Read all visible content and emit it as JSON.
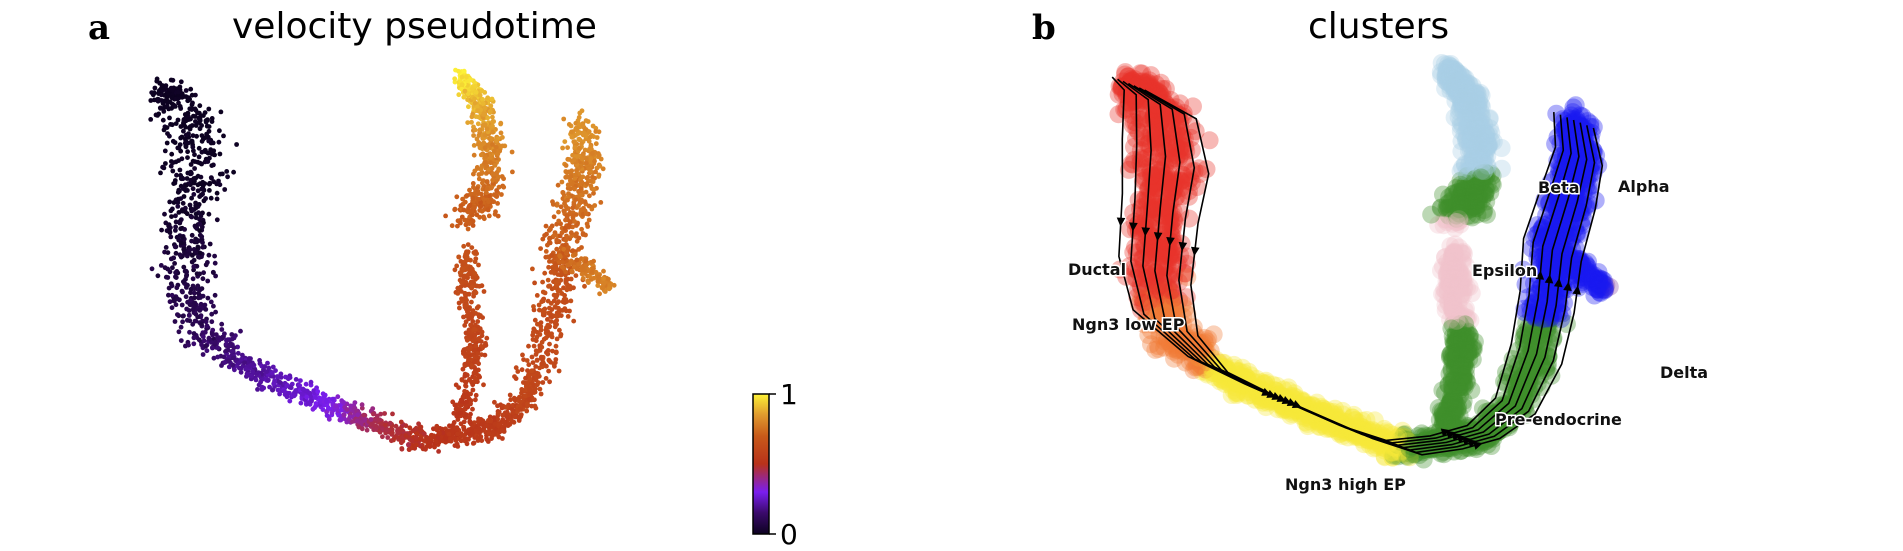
{
  "chart_data": [
    {
      "panel": "a",
      "type": "scatter",
      "title": "velocity pseudotime",
      "colormap": "plasma-like",
      "colorbar": {
        "ticks": [
          "1",
          "0"
        ],
        "range": [
          0,
          1
        ]
      },
      "regions": [
        {
          "name": "top-left lobe",
          "pseudotime": 0.0
        },
        {
          "name": "lower-left lobe",
          "pseudotime": 0.08
        },
        {
          "name": "lower bridge",
          "pseudotime": 0.2
        },
        {
          "name": "bottom arc",
          "pseudotime": 0.55
        },
        {
          "name": "right arm",
          "pseudotime": 0.7
        },
        {
          "name": "upper right",
          "pseudotime": 0.82
        },
        {
          "name": "top tip",
          "pseudotime": 1.0
        }
      ]
    },
    {
      "panel": "b",
      "type": "scatter",
      "title": "clusters",
      "overlay": "velocity streamlines",
      "clusters": [
        {
          "name": "Ductal",
          "color": "#e8352b"
        },
        {
          "name": "Ngn3 low EP",
          "color": "#f27b36"
        },
        {
          "name": "Ngn3 high EP",
          "color": "#f5e83a"
        },
        {
          "name": "Pre-endocrine",
          "color": "#3f8f2a"
        },
        {
          "name": "Beta",
          "color": "#a9cfe6"
        },
        {
          "name": "Alpha",
          "color": "#1a1af2"
        },
        {
          "name": "Delta",
          "color": "#8a4aa3"
        },
        {
          "name": "Epsilon",
          "color": "#f2c4cc"
        }
      ]
    }
  ],
  "panels": {
    "a": {
      "letter": "a",
      "title": "velocity pseudotime"
    },
    "b": {
      "letter": "b",
      "title": "clusters"
    }
  }
}
